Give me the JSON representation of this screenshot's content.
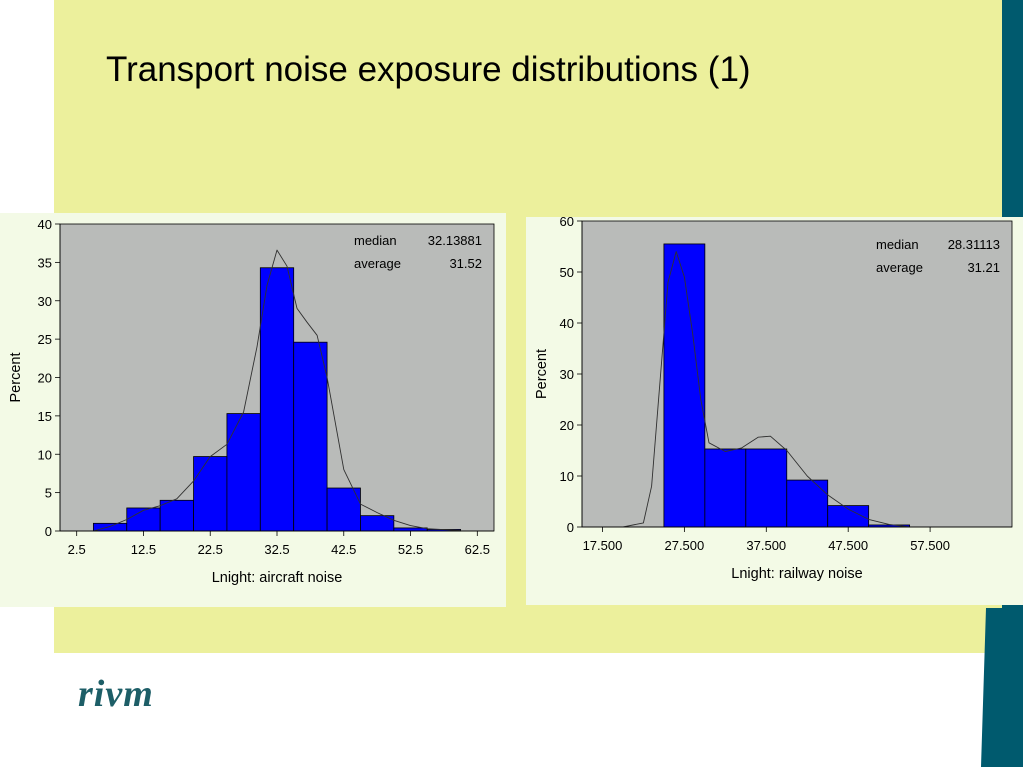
{
  "slide": {
    "title": "Transport noise exposure distributions (1)",
    "logo_text": "rivm",
    "colors": {
      "background": "#ecf09c",
      "accent": "#005a6e",
      "bar": "#0000ff",
      "plot_area": "#b9bbb9"
    }
  },
  "chart_data": [
    {
      "type": "bar",
      "xlabel": "Lnight: aircraft noise",
      "ylabel": "Percent",
      "ylim": [
        0,
        40
      ],
      "yticks": [
        0,
        5,
        10,
        15,
        20,
        25,
        30,
        35,
        40
      ],
      "xlim": [
        0,
        65
      ],
      "xticks": [
        2.5,
        12.5,
        22.5,
        32.5,
        42.5,
        52.5,
        62.5
      ],
      "xtick_labels": [
        "2.5",
        "12.5",
        "22.5",
        "32.5",
        "42.5",
        "52.5",
        "62.5"
      ],
      "bin_width": 5,
      "bins": [
        7.5,
        12.5,
        17.5,
        22.5,
        27.5,
        32.5,
        37.5,
        42.5,
        47.5,
        52.5,
        57.5
      ],
      "values": [
        1.0,
        3.0,
        4.0,
        9.7,
        15.3,
        34.3,
        24.6,
        5.6,
        2.0,
        0.4,
        0.2
      ],
      "density_curve": [
        [
          5,
          0
        ],
        [
          7.5,
          0.6
        ],
        [
          10,
          1.5
        ],
        [
          12.5,
          2.7
        ],
        [
          15,
          3.3
        ],
        [
          17.5,
          4.2
        ],
        [
          20,
          6.5
        ],
        [
          22.5,
          9.7
        ],
        [
          25,
          11.3
        ],
        [
          27.5,
          15.5
        ],
        [
          29.5,
          24
        ],
        [
          31,
          32
        ],
        [
          32.5,
          36.6
        ],
        [
          34,
          34.5
        ],
        [
          35.5,
          29
        ],
        [
          37,
          27.2
        ],
        [
          38.5,
          25.5
        ],
        [
          40,
          20
        ],
        [
          42.5,
          8
        ],
        [
          45,
          3.5
        ],
        [
          47.5,
          2.4
        ],
        [
          50,
          1.4
        ],
        [
          52.5,
          0.7
        ],
        [
          55,
          0.3
        ],
        [
          60,
          0.05
        ]
      ],
      "annotations": [
        {
          "label": "median",
          "value": "32.13881"
        },
        {
          "label": "average",
          "value": "31.52"
        }
      ],
      "grid": false,
      "legend": "none"
    },
    {
      "type": "bar",
      "xlabel": "Lnight: railway noise",
      "ylabel": "Percent",
      "ylim": [
        0,
        60
      ],
      "yticks": [
        0,
        10,
        20,
        30,
        40,
        50,
        60
      ],
      "xlim": [
        15,
        67.5
      ],
      "xticks": [
        17.5,
        27.5,
        37.5,
        47.5,
        57.5
      ],
      "xtick_labels": [
        "17.500",
        "27.500",
        "37.500",
        "47.500",
        "57.500"
      ],
      "bin_width": 5,
      "bins": [
        27.5,
        32.5,
        37.5,
        42.5,
        47.5,
        52.5
      ],
      "values": [
        55.5,
        15.3,
        15.3,
        9.2,
        4.2,
        0.4
      ],
      "density_curve": [
        [
          20,
          0
        ],
        [
          22.5,
          0.8
        ],
        [
          23.5,
          8
        ],
        [
          24.5,
          28
        ],
        [
          25.5,
          48
        ],
        [
          26.5,
          54
        ],
        [
          27.5,
          49
        ],
        [
          28.5,
          38
        ],
        [
          29.5,
          25
        ],
        [
          30.5,
          16.5
        ],
        [
          32.5,
          14.8
        ],
        [
          34.5,
          15.5
        ],
        [
          36.5,
          17.6
        ],
        [
          38,
          17.8
        ],
        [
          40,
          15
        ],
        [
          42.5,
          10
        ],
        [
          45,
          6.3
        ],
        [
          47.5,
          3.5
        ],
        [
          50,
          1.5
        ],
        [
          52.5,
          0.5
        ],
        [
          55,
          0
        ]
      ],
      "annotations": [
        {
          "label": "median",
          "value": "28.31113"
        },
        {
          "label": "average",
          "value": "31.21"
        }
      ],
      "grid": false,
      "legend": "none"
    }
  ]
}
